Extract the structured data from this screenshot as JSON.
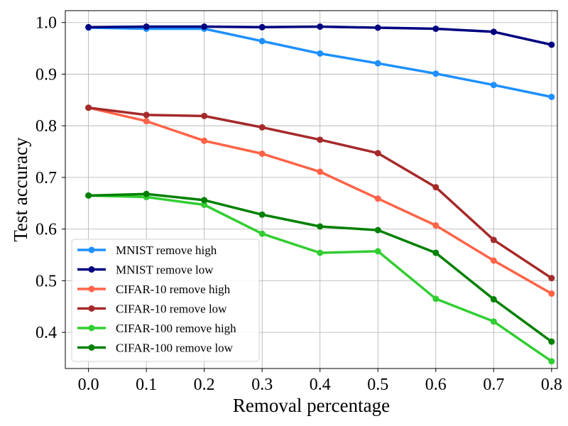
{
  "chart_data": {
    "type": "line",
    "title": "",
    "xlabel": "Removal percentage",
    "ylabel": "Test accuracy",
    "x": [
      0.0,
      0.1,
      0.2,
      0.3,
      0.4,
      0.5,
      0.6,
      0.7,
      0.8
    ],
    "x_tick_labels": [
      "0.0",
      "0.1",
      "0.2",
      "0.3",
      "0.4",
      "0.5",
      "0.6",
      "0.7",
      "0.8"
    ],
    "y_ticks": [
      0.4,
      0.5,
      0.6,
      0.7,
      0.8,
      0.9,
      1.0
    ],
    "y_tick_labels": [
      "0.4",
      "0.5",
      "0.6",
      "0.7",
      "0.8",
      "0.9",
      "1.0"
    ],
    "xlim": [
      -0.04,
      0.81
    ],
    "ylim": [
      0.33,
      1.023
    ],
    "grid": true,
    "legend_position": "bottom-left",
    "series": [
      {
        "name": "MNIST remove high",
        "color": "#1e90ff",
        "values": [
          0.99,
          0.988,
          0.988,
          0.964,
          0.94,
          0.921,
          0.901,
          0.879,
          0.856
        ]
      },
      {
        "name": "MNIST remove low",
        "color": "#000080",
        "values": [
          0.991,
          0.992,
          0.992,
          0.991,
          0.992,
          0.99,
          0.988,
          0.982,
          0.957
        ]
      },
      {
        "name": "CIFAR-10 remove high",
        "color": "#ff6347",
        "values": [
          0.835,
          0.809,
          0.771,
          0.746,
          0.711,
          0.659,
          0.607,
          0.539,
          0.475
        ]
      },
      {
        "name": "CIFAR-10 remove low",
        "color": "#a52a2a",
        "values": [
          0.835,
          0.821,
          0.819,
          0.797,
          0.773,
          0.747,
          0.681,
          0.579,
          0.505
        ]
      },
      {
        "name": "CIFAR-100 remove high",
        "color": "#32cd32",
        "values": [
          0.665,
          0.662,
          0.647,
          0.591,
          0.554,
          0.557,
          0.465,
          0.421,
          0.344
        ]
      },
      {
        "name": "CIFAR-100 remove low",
        "color": "#008000",
        "values": [
          0.665,
          0.668,
          0.656,
          0.628,
          0.605,
          0.598,
          0.554,
          0.464,
          0.382
        ]
      }
    ]
  }
}
